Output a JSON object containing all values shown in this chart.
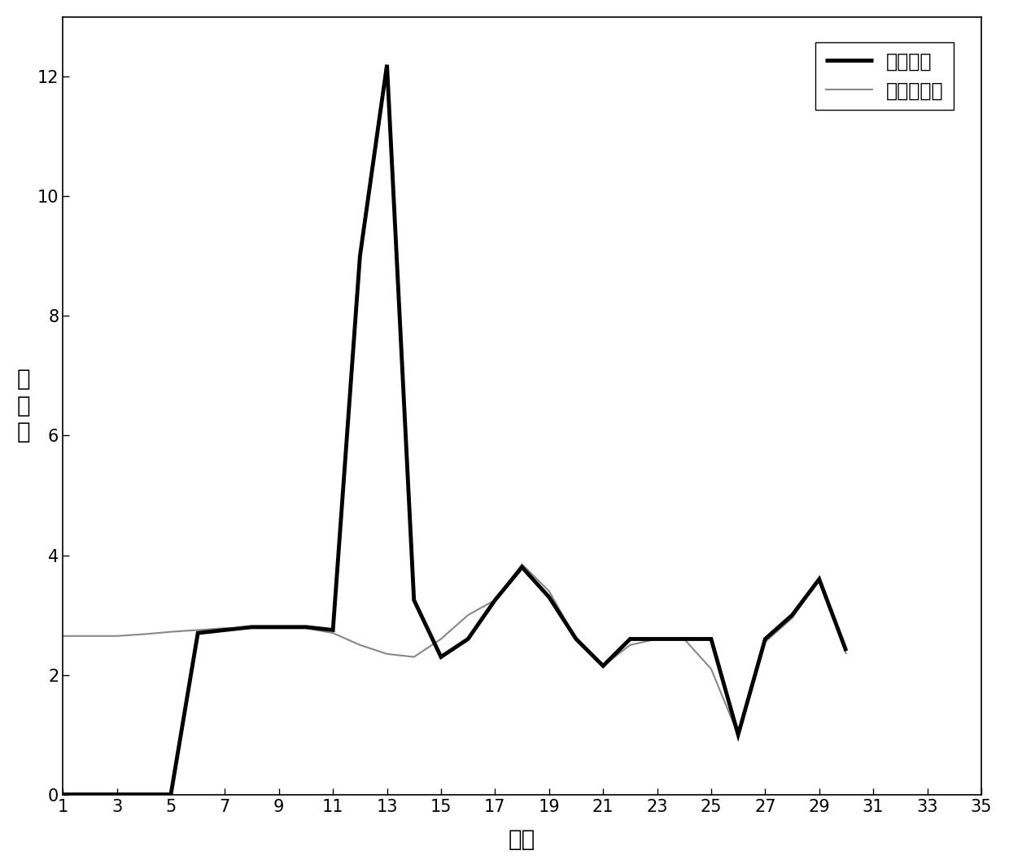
{
  "original_x": [
    1,
    2,
    3,
    4,
    5,
    6,
    7,
    8,
    9,
    10,
    11,
    12,
    13,
    14,
    15,
    16,
    17,
    18,
    19,
    20,
    21,
    22,
    23,
    24,
    25,
    26,
    27,
    28,
    29,
    30
  ],
  "original_y": [
    0.0,
    0.0,
    0.0,
    0.0,
    0.0,
    2.7,
    2.75,
    2.8,
    2.8,
    2.8,
    2.75,
    9.0,
    12.2,
    3.25,
    2.3,
    2.6,
    3.25,
    3.8,
    3.3,
    2.6,
    2.15,
    2.6,
    2.6,
    2.6,
    2.6,
    1.0,
    2.6,
    3.0,
    3.6,
    2.4
  ],
  "optimized_x": [
    1,
    2,
    3,
    4,
    5,
    6,
    7,
    8,
    9,
    10,
    11,
    12,
    13,
    14,
    15,
    16,
    17,
    18,
    19,
    20,
    21,
    22,
    23,
    24,
    25,
    26,
    27,
    28,
    29,
    30
  ],
  "optimized_y": [
    2.65,
    2.65,
    2.65,
    2.68,
    2.72,
    2.75,
    2.78,
    2.78,
    2.78,
    2.78,
    2.7,
    2.5,
    2.35,
    2.3,
    2.6,
    3.0,
    3.25,
    3.85,
    3.4,
    2.6,
    2.15,
    2.5,
    2.6,
    2.6,
    2.1,
    1.0,
    2.55,
    2.95,
    3.6,
    2.35
  ],
  "xlabel": "日期",
  "ylabel": "数据値",
  "legend_original": "原始数据",
  "legend_optimized": "优化后数据",
  "xlim": [
    1,
    35
  ],
  "ylim": [
    0,
    13
  ],
  "xticks": [
    1,
    3,
    5,
    7,
    9,
    11,
    13,
    15,
    17,
    19,
    21,
    23,
    25,
    27,
    29,
    31,
    33,
    35
  ],
  "yticks": [
    0,
    2,
    4,
    6,
    8,
    10,
    12
  ],
  "original_color": "#000000",
  "optimized_color": "#888888",
  "original_linewidth": 3.5,
  "optimized_linewidth": 1.5,
  "background_color": "#ffffff",
  "font_size_label": 20,
  "font_size_tick": 15,
  "font_size_legend": 17
}
